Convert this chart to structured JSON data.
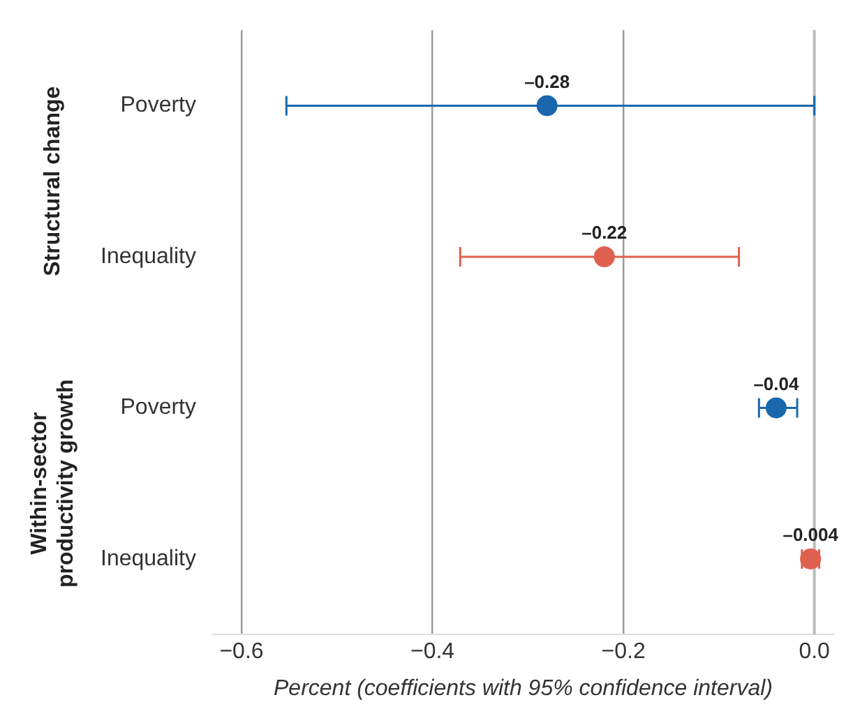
{
  "chart_data": {
    "type": "scatter",
    "orientation": "horizontal",
    "categories": [
      "Poverty",
      "Inequality",
      "Poverty",
      "Inequality"
    ],
    "values": [
      -0.28,
      -0.22,
      -0.04,
      -0.004
    ],
    "colors": [
      "#1a67ad",
      "#e0604f",
      "#1a67ad",
      "#e0604f"
    ],
    "errors": [
      [
        -0.553,
        0.0
      ],
      [
        -0.371,
        -0.079
      ],
      [
        -0.058,
        -0.018
      ],
      [
        -0.013,
        0.005
      ]
    ],
    "value_labels": [
      "–0.28",
      "–0.22",
      "–0.04",
      "–0.004"
    ],
    "annotations": [
      "Structural change",
      "Within-sector productivity growth"
    ],
    "xlabel": "Percent (coefficients with 95% confidence interval)",
    "xlim": [
      -0.63,
      0.02
    ],
    "xticks": [
      {
        "value": -0.6,
        "label": "−0.6"
      },
      {
        "value": -0.4,
        "label": "−0.4"
      },
      {
        "value": -0.2,
        "label": "−0.2"
      },
      {
        "value": 0,
        "label": "0.0"
      }
    ],
    "grid": "x",
    "marker": "circle",
    "ref_lines": [
      {
        "axis": "x",
        "value": 0,
        "color": "#bbbbbb"
      }
    ]
  }
}
